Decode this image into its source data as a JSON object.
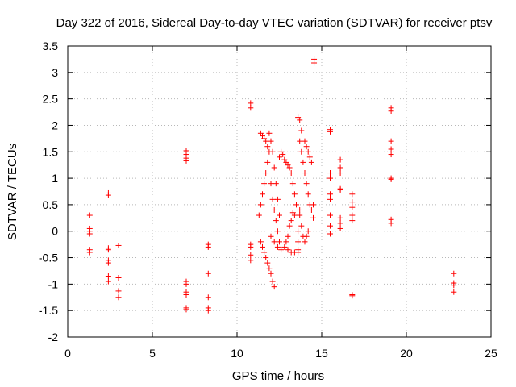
{
  "chart_data": {
    "type": "scatter",
    "title": "Day 322 of 2016, Sidereal Day-to-day VTEC variation (SDTVAR) for receiver ptsv",
    "xlabel": "GPS time / hours",
    "ylabel": "SDTVAR / TECUs",
    "xlim": [
      0,
      25
    ],
    "ylim": [
      -2,
      3.5
    ],
    "xticks": [
      "0",
      "5",
      "10",
      "15",
      "20",
      "25"
    ],
    "yticks": [
      "-2",
      "-1.5",
      "-1",
      "-0.5",
      "0",
      "0.5",
      "1",
      "1.5",
      "2",
      "2.5",
      "3",
      "3.5"
    ],
    "grid": true,
    "marker": "+",
    "color": "#ff0000",
    "series": [
      {
        "name": "SDTVAR",
        "points": [
          [
            1.3,
            0.3
          ],
          [
            1.3,
            0.05
          ],
          [
            1.3,
            0.0
          ],
          [
            1.3,
            -0.05
          ],
          [
            1.3,
            -0.35
          ],
          [
            1.3,
            -0.4
          ],
          [
            2.4,
            0.72
          ],
          [
            2.4,
            0.68
          ],
          [
            2.4,
            -0.32
          ],
          [
            2.4,
            -0.35
          ],
          [
            2.4,
            -0.55
          ],
          [
            2.4,
            -0.6
          ],
          [
            2.4,
            -0.85
          ],
          [
            2.4,
            -0.95
          ],
          [
            3.0,
            -0.27
          ],
          [
            3.0,
            -0.88
          ],
          [
            3.0,
            -1.13
          ],
          [
            3.0,
            -1.25
          ],
          [
            7.0,
            1.52
          ],
          [
            7.0,
            1.45
          ],
          [
            7.0,
            1.38
          ],
          [
            7.0,
            1.33
          ],
          [
            7.0,
            -0.95
          ],
          [
            7.0,
            -1.0
          ],
          [
            7.0,
            -1.15
          ],
          [
            7.0,
            -1.2
          ],
          [
            7.0,
            -1.45
          ],
          [
            7.0,
            -1.48
          ],
          [
            8.3,
            -0.25
          ],
          [
            8.3,
            -0.3
          ],
          [
            8.3,
            -0.8
          ],
          [
            8.3,
            -1.25
          ],
          [
            8.3,
            -1.45
          ],
          [
            8.3,
            -1.5
          ],
          [
            10.8,
            2.42
          ],
          [
            10.8,
            2.33
          ],
          [
            10.8,
            -0.25
          ],
          [
            10.8,
            -0.3
          ],
          [
            10.8,
            -0.45
          ],
          [
            10.8,
            -0.55
          ],
          [
            11.4,
            1.85
          ],
          [
            11.5,
            1.8
          ],
          [
            11.6,
            1.75
          ],
          [
            11.7,
            1.7
          ],
          [
            11.8,
            1.6
          ],
          [
            11.9,
            1.5
          ],
          [
            11.3,
            0.3
          ],
          [
            11.4,
            0.5
          ],
          [
            11.5,
            0.7
          ],
          [
            11.6,
            0.9
          ],
          [
            11.7,
            1.1
          ],
          [
            11.8,
            1.3
          ],
          [
            11.4,
            -0.2
          ],
          [
            11.5,
            -0.3
          ],
          [
            11.6,
            -0.4
          ],
          [
            11.7,
            -0.5
          ],
          [
            11.8,
            -0.6
          ],
          [
            11.9,
            -0.7
          ],
          [
            12.0,
            -0.8
          ],
          [
            12.1,
            -0.95
          ],
          [
            12.2,
            -1.05
          ],
          [
            11.9,
            1.85
          ],
          [
            12.0,
            1.7
          ],
          [
            12.1,
            1.5
          ],
          [
            12.2,
            1.2
          ],
          [
            12.3,
            0.9
          ],
          [
            12.4,
            0.6
          ],
          [
            12.5,
            0.3
          ],
          [
            12.0,
            0.9
          ],
          [
            12.1,
            0.6
          ],
          [
            12.2,
            0.4
          ],
          [
            12.3,
            0.2
          ],
          [
            12.4,
            0.0
          ],
          [
            12.5,
            -0.2
          ],
          [
            12.0,
            -0.1
          ],
          [
            12.2,
            -0.2
          ],
          [
            12.4,
            -0.3
          ],
          [
            12.6,
            -0.35
          ],
          [
            12.8,
            -0.3
          ],
          [
            13.0,
            -0.35
          ],
          [
            13.2,
            -0.4
          ],
          [
            13.4,
            -0.4
          ],
          [
            13.6,
            -0.35
          ],
          [
            12.5,
            1.4
          ],
          [
            12.6,
            1.5
          ],
          [
            12.7,
            1.45
          ],
          [
            12.8,
            1.35
          ],
          [
            12.9,
            1.3
          ],
          [
            13.0,
            1.25
          ],
          [
            13.1,
            1.2
          ],
          [
            13.2,
            1.1
          ],
          [
            13.3,
            0.9
          ],
          [
            13.4,
            0.7
          ],
          [
            13.5,
            0.5
          ],
          [
            12.9,
            -0.2
          ],
          [
            13.0,
            -0.1
          ],
          [
            13.1,
            0.1
          ],
          [
            13.2,
            0.2
          ],
          [
            13.3,
            0.35
          ],
          [
            13.4,
            0.3
          ],
          [
            13.6,
            2.15
          ],
          [
            13.7,
            2.1
          ],
          [
            13.8,
            1.9
          ],
          [
            13.7,
            1.7
          ],
          [
            13.8,
            1.5
          ],
          [
            13.9,
            1.3
          ],
          [
            14.0,
            1.1
          ],
          [
            14.1,
            0.9
          ],
          [
            14.2,
            0.7
          ],
          [
            14.3,
            0.5
          ],
          [
            13.7,
            0.3
          ],
          [
            13.8,
            0.1
          ],
          [
            13.9,
            -0.1
          ],
          [
            14.0,
            -0.2
          ],
          [
            14.1,
            -0.1
          ],
          [
            14.2,
            0.0
          ],
          [
            13.6,
            0.0
          ],
          [
            13.6,
            -0.2
          ],
          [
            13.6,
            -0.4
          ],
          [
            13.7,
            0.4
          ],
          [
            14.0,
            1.7
          ],
          [
            14.1,
            1.6
          ],
          [
            14.2,
            1.5
          ],
          [
            14.3,
            1.4
          ],
          [
            14.4,
            1.3
          ],
          [
            14.4,
            0.4
          ],
          [
            14.5,
            0.25
          ],
          [
            14.5,
            0.5
          ],
          [
            14.55,
            3.25
          ],
          [
            14.55,
            3.18
          ],
          [
            15.5,
            1.92
          ],
          [
            15.5,
            1.88
          ],
          [
            15.5,
            1.1
          ],
          [
            15.5,
            1.0
          ],
          [
            15.5,
            0.7
          ],
          [
            15.5,
            0.6
          ],
          [
            15.5,
            0.3
          ],
          [
            15.5,
            0.1
          ],
          [
            15.5,
            -0.05
          ],
          [
            16.1,
            1.35
          ],
          [
            16.1,
            1.2
          ],
          [
            16.1,
            1.1
          ],
          [
            16.1,
            0.8
          ],
          [
            16.1,
            0.78
          ],
          [
            16.1,
            0.25
          ],
          [
            16.1,
            0.15
          ],
          [
            16.1,
            0.05
          ],
          [
            16.8,
            0.7
          ],
          [
            16.8,
            0.55
          ],
          [
            16.8,
            0.45
          ],
          [
            16.8,
            0.3
          ],
          [
            16.8,
            0.2
          ],
          [
            16.8,
            -1.2
          ],
          [
            16.8,
            -1.22
          ],
          [
            19.1,
            2.33
          ],
          [
            19.1,
            2.27
          ],
          [
            19.1,
            1.7
          ],
          [
            19.1,
            1.55
          ],
          [
            19.1,
            1.45
          ],
          [
            19.1,
            1.0
          ],
          [
            19.1,
            0.98
          ],
          [
            19.1,
            0.22
          ],
          [
            19.1,
            0.15
          ],
          [
            22.8,
            -0.8
          ],
          [
            22.8,
            -0.98
          ],
          [
            22.8,
            -1.02
          ],
          [
            22.8,
            -1.15
          ]
        ]
      }
    ]
  }
}
